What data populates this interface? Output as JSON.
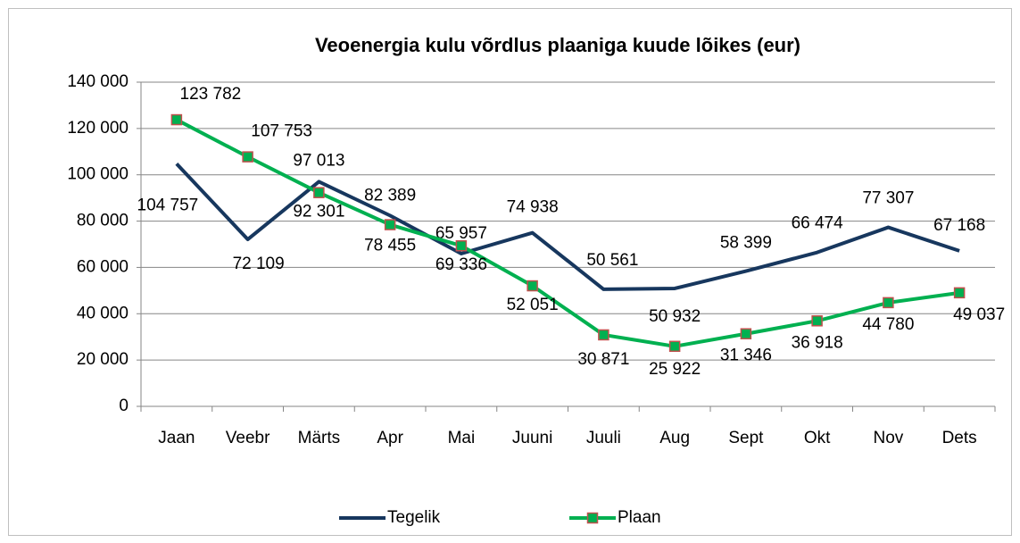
{
  "chart_data": {
    "type": "line",
    "title": "Veoenergia kulu võrdlus plaaniga kuude lõikes (eur)",
    "categories": [
      "Jaan",
      "Veebr",
      "Märts",
      "Apr",
      "Mai",
      "Juuni",
      "Juuli",
      "Aug",
      "Sept",
      "Okt",
      "Nov",
      "Dets"
    ],
    "series": [
      {
        "name": "Tegelik",
        "color": "#17375e",
        "values": [
          104757,
          72109,
          97013,
          82389,
          65957,
          74938,
          50561,
          50932,
          58399,
          66474,
          77307,
          67168
        ],
        "value_labels": [
          "104 757",
          "72 109",
          "97 013",
          "82 389",
          "65 957",
          "74 938",
          "50 561",
          "50 932",
          "58 399",
          "66 474",
          "77 307",
          "67 168"
        ]
      },
      {
        "name": "Plaan",
        "color": "#00b050",
        "marker": "square",
        "marker_edge_color": "#c0504d",
        "values": [
          123782,
          107753,
          92301,
          78455,
          69336,
          52051,
          30871,
          25922,
          31346,
          36918,
          44780,
          49037
        ],
        "value_labels": [
          "123 782",
          "107 753",
          "92 301",
          "78 455",
          "69 336",
          "52 051",
          "30 871",
          "25 922",
          "31 346",
          "36 918",
          "44 780",
          "49 037"
        ]
      }
    ],
    "ylim": [
      0,
      140000
    ],
    "yticks": [
      0,
      {
        "value": 20000,
        "label": "20 000"
      },
      {
        "value": 40000,
        "label": "40 000"
      },
      {
        "value": 60000,
        "label": "60 000"
      },
      {
        "value": 80000,
        "label": "80 000"
      },
      {
        "value": 100000,
        "label": "100 000"
      },
      {
        "value": 120000,
        "label": "120 000"
      },
      {
        "value": 140000,
        "label": "140 000"
      }
    ],
    "grid": true,
    "legend": "bottom"
  }
}
